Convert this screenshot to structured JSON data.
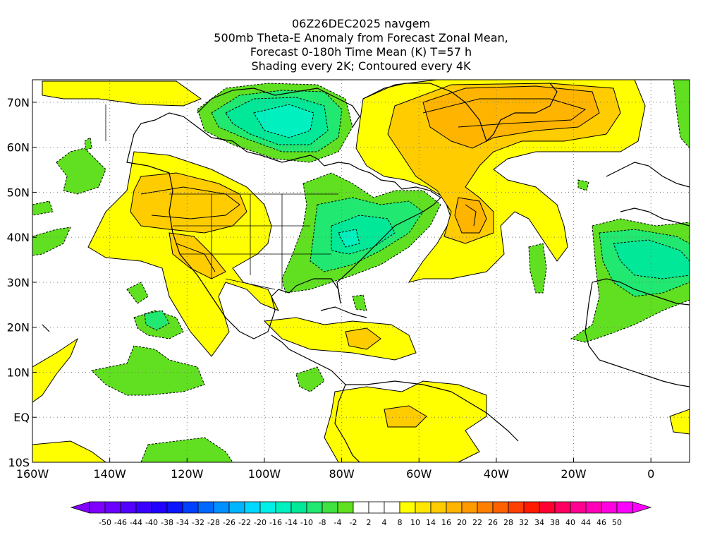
{
  "title_lines": [
    "06Z26DEC2025 navgem",
    "500mb Theta-E Anomaly from Forecast Zonal Mean,",
    "Forecast 0-180h Time Mean (K) T=57 h",
    "Shading every 2K; Contoured every 4K"
  ],
  "map": {
    "lat_labels": [
      "70N",
      "60N",
      "50N",
      "40N",
      "30N",
      "20N",
      "10N",
      "EQ",
      "10S"
    ],
    "lon_labels": [
      "160W",
      "140W",
      "120W",
      "100W",
      "80W",
      "60W",
      "40W",
      "20W",
      "0"
    ]
  },
  "colorbar": {
    "labels": [
      "-50",
      "-46",
      "-44",
      "-40",
      "-38",
      "-34",
      "-32",
      "-28",
      "-26",
      "-22",
      "-20",
      "-16",
      "-14",
      "-10",
      "-8",
      "-4",
      "-2",
      "2",
      "4",
      "8",
      "10",
      "14",
      "16",
      "20",
      "22",
      "26",
      "28",
      "32",
      "34",
      "38",
      "40",
      "44",
      "46",
      "50"
    ],
    "colors": [
      "#7f00ff",
      "#6a00ff",
      "#5200ff",
      "#3a00ff",
      "#2000ff",
      "#0a14ff",
      "#0040ff",
      "#0068ff",
      "#0090ff",
      "#00b4ff",
      "#00d8ff",
      "#00f0e8",
      "#00f0c0",
      "#00e898",
      "#20e870",
      "#40e040",
      "#60e020",
      "#ffffff",
      "#ffffff",
      "#ffffff",
      "#ffff00",
      "#ffe600",
      "#ffcc00",
      "#ffb400",
      "#ff9a00",
      "#ff8000",
      "#ff6000",
      "#ff4000",
      "#ff1a00",
      "#ff0030",
      "#ff0060",
      "#ff0090",
      "#ff00b8",
      "#ff00e0",
      "#ff00ff"
    ]
  }
}
